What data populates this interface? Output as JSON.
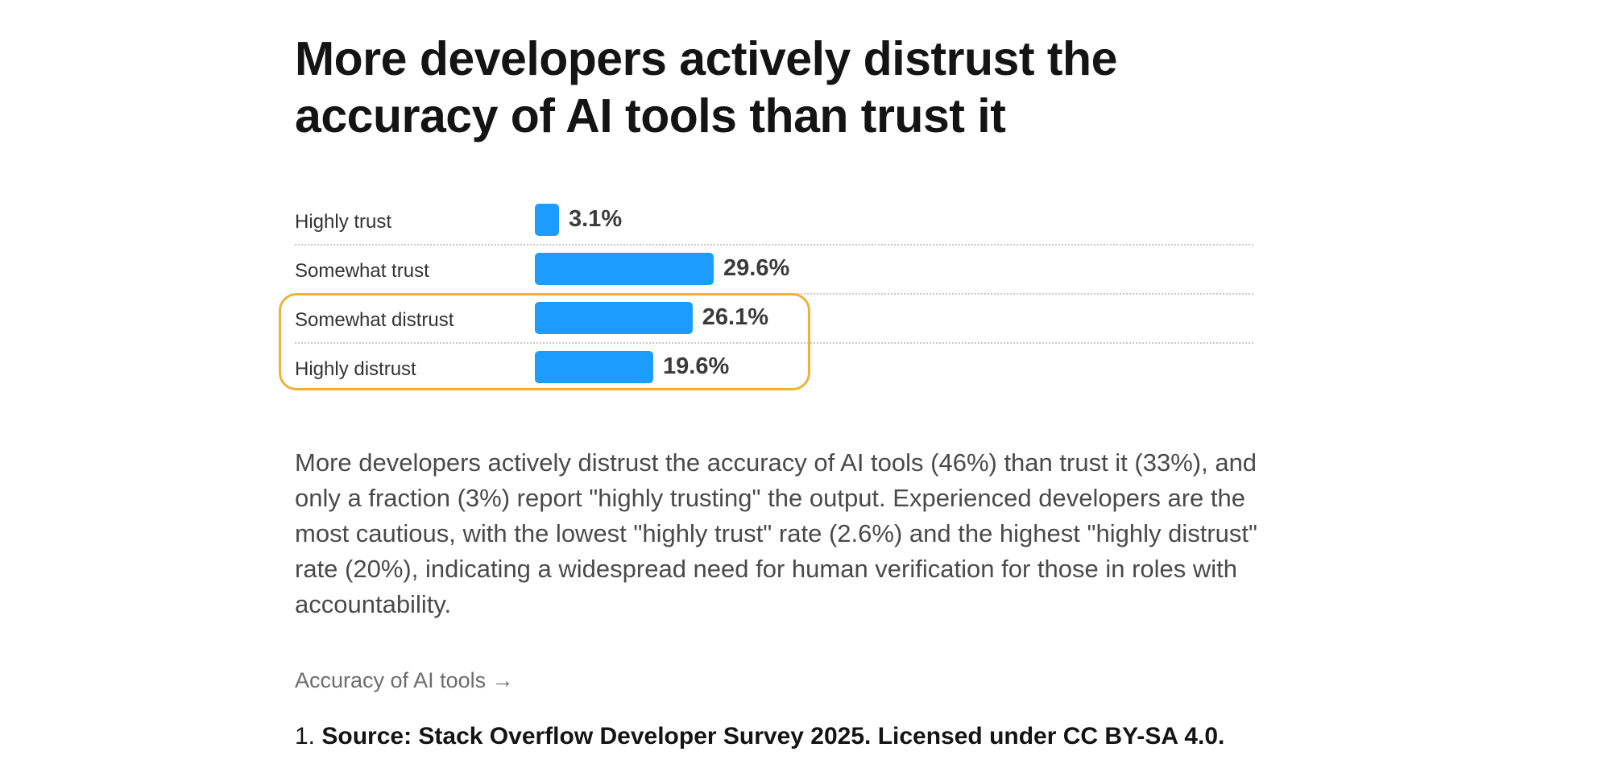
{
  "title": "More developers actively distrust the accuracy of AI tools than trust it",
  "chart_data": {
    "type": "bar",
    "orientation": "horizontal",
    "title": "More developers actively distrust the accuracy of AI tools than trust it",
    "unit": "%",
    "xlim": [
      0,
      100
    ],
    "categories": [
      "Highly trust",
      "Somewhat trust",
      "Somewhat distrust",
      "Highly distrust"
    ],
    "values": [
      3.1,
      29.6,
      26.1,
      19.6
    ],
    "value_labels": [
      "3.1%",
      "29.6%",
      "26.1%",
      "19.6%"
    ],
    "highlighted_categories": [
      "Somewhat distrust",
      "Highly distrust"
    ],
    "grid": false
  },
  "colors": {
    "bar": "#1c9cfc",
    "highlight": "#f0b13a"
  },
  "description": "More developers actively distrust the accuracy of AI tools (46%) than trust it (33%), and only a fraction (3%) report \"highly trusting\" the output. Experienced developers are the most cautious, with the lowest \"highly trust\" rate (2.6%) and the highest \"highly distrust\" rate (20%), indicating a widespread need for human verification for those in roles with accountability.",
  "link": {
    "label": "Accuracy of AI tools →"
  },
  "footnote": {
    "number": "1.",
    "text": "Source: Stack Overflow Developer Survey 2025. Licensed under CC BY-SA 4.0."
  }
}
